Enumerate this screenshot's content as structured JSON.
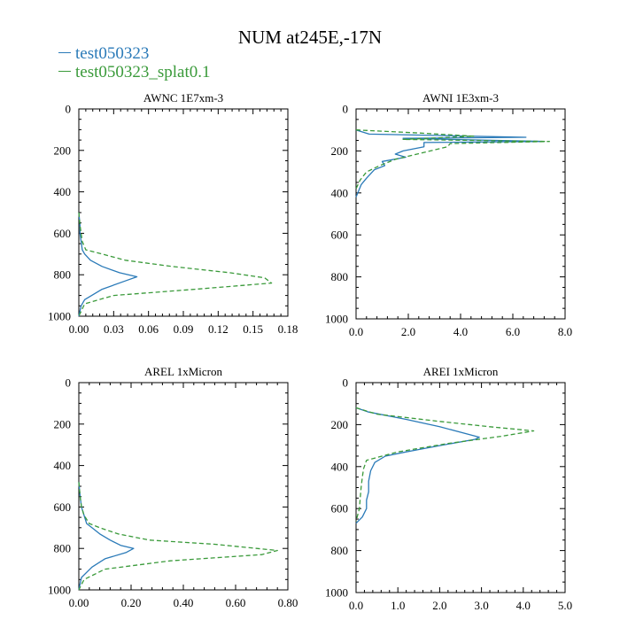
{
  "figure": {
    "title": "NUM at245E,-17N",
    "legend": [
      {
        "name": "test050323",
        "color": "#2a7ab8",
        "dash": "solid"
      },
      {
        "name": "test050323_splat0.1",
        "color": "#3a9a3a",
        "dash": "dashed"
      }
    ]
  },
  "chart_data": [
    {
      "type": "line",
      "title": "AWNC  1E7xm-3",
      "ylim": [
        1000,
        0
      ],
      "xlim": [
        0,
        0.18
      ],
      "xticks": [
        0,
        0.03,
        0.06,
        0.09,
        0.12,
        0.15,
        0.18
      ],
      "xtick_labels": [
        "0.00",
        "0.03",
        "0.06",
        "0.09",
        "0.12",
        "0.15",
        "0.18"
      ],
      "yticks": [
        0,
        200,
        400,
        600,
        800,
        1000
      ],
      "ytick_labels": [
        "0",
        "200",
        "400",
        "600",
        "800",
        "1000"
      ],
      "series": [
        {
          "name": "test050323",
          "x": [
            0,
            0.001,
            0.001,
            0.002,
            0.003,
            0.005,
            0.01,
            0.02,
            0.035,
            0.05,
            0.04,
            0.02,
            0.005,
            0.002,
            0
          ],
          "y": [
            500,
            560,
            600,
            640,
            680,
            700,
            730,
            760,
            790,
            810,
            830,
            870,
            920,
            950,
            1000
          ]
        },
        {
          "name": "test050323_splat0.1",
          "x": [
            0,
            0.001,
            0.002,
            0.003,
            0.006,
            0.02,
            0.04,
            0.08,
            0.13,
            0.16,
            0.166,
            0.1,
            0.03,
            0.005,
            0
          ],
          "y": [
            500,
            560,
            600,
            640,
            680,
            700,
            730,
            760,
            790,
            815,
            840,
            870,
            900,
            940,
            1000
          ]
        }
      ]
    },
    {
      "type": "line",
      "title": "AWNI  1E3xm-3",
      "ylim": [
        1000,
        0
      ],
      "xlim": [
        0,
        8
      ],
      "xticks": [
        0,
        2,
        4,
        6,
        8
      ],
      "xtick_labels": [
        "0.0",
        "2.0",
        "4.0",
        "6.0",
        "8.0"
      ],
      "yticks": [
        0,
        200,
        400,
        600,
        800,
        1000
      ],
      "ytick_labels": [
        "0",
        "200",
        "400",
        "600",
        "800",
        "1000"
      ],
      "series": [
        {
          "name": "test050323",
          "x": [
            0,
            0.5,
            6.5,
            1.8,
            7.2,
            2.6,
            2.6,
            1.8,
            1.5,
            1.9,
            1.0,
            1.1,
            0.7,
            0.4,
            0.2,
            0
          ],
          "y": [
            100,
            120,
            135,
            140,
            155,
            160,
            180,
            200,
            215,
            230,
            250,
            270,
            290,
            330,
            360,
            420
          ]
        },
        {
          "name": "test050323_splat0.1",
          "x": [
            0,
            2.5,
            4.5,
            1.8,
            7.4,
            3.6,
            3.5,
            2.5,
            1.5,
            0.9,
            0.4,
            0.15,
            0
          ],
          "y": [
            100,
            115,
            130,
            145,
            155,
            165,
            180,
            210,
            240,
            270,
            300,
            340,
            380
          ]
        }
      ]
    },
    {
      "type": "line",
      "title": "AREL  1xMicron",
      "ylim": [
        1000,
        0
      ],
      "xlim": [
        0,
        0.8
      ],
      "xticks": [
        0,
        0.2,
        0.4,
        0.6,
        0.8
      ],
      "xtick_labels": [
        "0.00",
        "0.20",
        "0.40",
        "0.60",
        "0.80"
      ],
      "yticks": [
        0,
        200,
        400,
        600,
        800,
        1000
      ],
      "ytick_labels": [
        "0",
        "200",
        "400",
        "600",
        "800",
        "1000"
      ],
      "series": [
        {
          "name": "test050323",
          "x": [
            0,
            0.005,
            0.01,
            0.02,
            0.03,
            0.05,
            0.08,
            0.12,
            0.16,
            0.21,
            0.18,
            0.1,
            0.05,
            0.01,
            0
          ],
          "y": [
            480,
            550,
            600,
            640,
            680,
            700,
            730,
            760,
            785,
            800,
            820,
            850,
            890,
            940,
            1000
          ]
        },
        {
          "name": "test050323_splat0.1",
          "x": [
            0,
            0.005,
            0.01,
            0.02,
            0.04,
            0.08,
            0.15,
            0.27,
            0.52,
            0.76,
            0.7,
            0.35,
            0.1,
            0.02,
            0
          ],
          "y": [
            480,
            550,
            600,
            640,
            680,
            700,
            730,
            760,
            780,
            810,
            830,
            860,
            900,
            950,
            1000
          ]
        }
      ]
    },
    {
      "type": "line",
      "title": "AREI  1xMicron",
      "ylim": [
        1000,
        0
      ],
      "xlim": [
        0,
        5
      ],
      "xticks": [
        0,
        1,
        2,
        3,
        4,
        5
      ],
      "xtick_labels": [
        "0.0",
        "1.0",
        "2.0",
        "3.0",
        "4.0",
        "5.0"
      ],
      "yticks": [
        0,
        200,
        400,
        600,
        800,
        1000
      ],
      "ytick_labels": [
        "0",
        "200",
        "400",
        "600",
        "800",
        "1000"
      ],
      "series": [
        {
          "name": "test050323",
          "x": [
            0,
            0.3,
            1.2,
            2.0,
            2.95,
            2.85,
            2.0,
            1.2,
            0.7,
            0.45,
            0.35,
            0.3,
            0.3,
            0.25,
            0.25,
            0.15,
            0
          ],
          "y": [
            120,
            140,
            175,
            210,
            260,
            270,
            300,
            330,
            350,
            380,
            420,
            470,
            520,
            560,
            600,
            640,
            670
          ]
        },
        {
          "name": "test050323_splat0.1",
          "x": [
            0,
            0.5,
            2.0,
            3.2,
            4.25,
            3.5,
            2.2,
            1.0,
            0.25,
            0.18,
            0.15,
            0.12,
            0.1,
            0.08,
            0
          ],
          "y": [
            120,
            150,
            185,
            210,
            230,
            255,
            290,
            330,
            370,
            410,
            450,
            500,
            550,
            600,
            660
          ]
        }
      ]
    }
  ]
}
